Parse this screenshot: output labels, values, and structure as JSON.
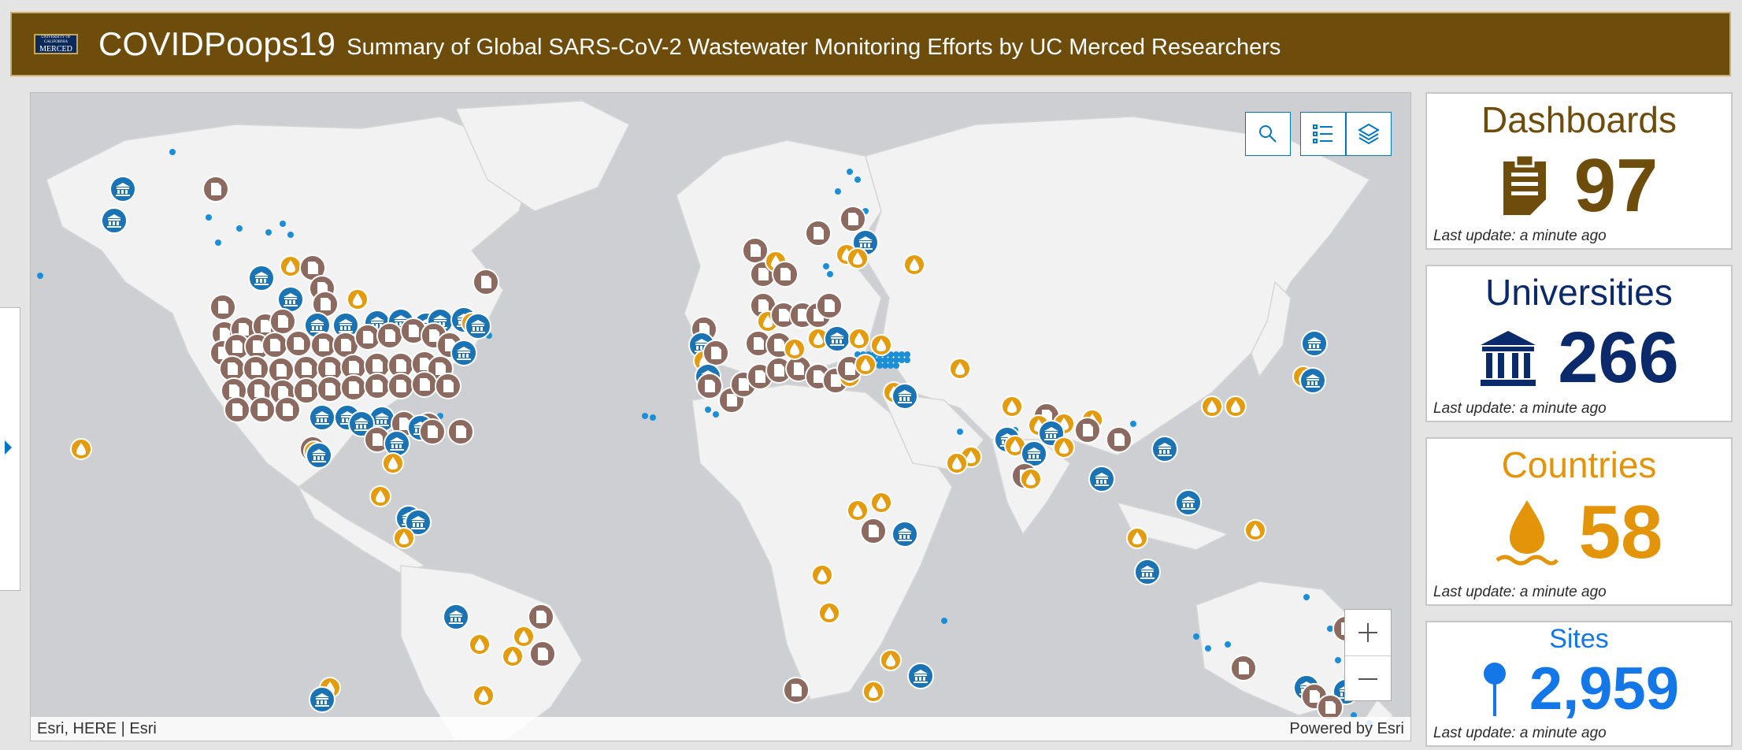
{
  "header": {
    "logo_top": "UNIVERSITY OF CALIFORNIA",
    "logo_main": "MERCED",
    "title": "COVIDPoops19",
    "subtitle": "Summary of Global SARS-CoV-2 Wastewater Monitoring Efforts by UC Merced Researchers"
  },
  "map": {
    "attribution_left": "Esri, HERE | Esri",
    "attribution_right": "Powered by Esri",
    "tools": [
      "search",
      "legend",
      "layers"
    ],
    "zoom": [
      "zoom-in",
      "zoom-out"
    ]
  },
  "cards": [
    {
      "key": "dashboards",
      "title": "Dashboards",
      "value": "97",
      "updated": "Last update: a minute ago",
      "color": "#6e4c0c",
      "icon": "clipboard-icon"
    },
    {
      "key": "universities",
      "title": "Universities",
      "value": "266",
      "updated": "Last update: a minute ago",
      "color": "#0b2a6b",
      "icon": "university-icon"
    },
    {
      "key": "countries",
      "title": "Countries",
      "value": "58",
      "updated": "Last update: a minute ago",
      "color": "#e39409",
      "icon": "water-drop-icon"
    },
    {
      "key": "sites",
      "title": "Sites",
      "value": "2,959",
      "updated": "Last update: a minute ago",
      "color": "#1377e8",
      "icon": "map-pin-icon"
    }
  ],
  "colors": {
    "header": "#6e4c0c",
    "dashboard_marker": "#8c6a60",
    "university_marker": "#1a73b5",
    "country_marker": "#e59b0e",
    "site_dot": "#1a8fd8"
  }
}
